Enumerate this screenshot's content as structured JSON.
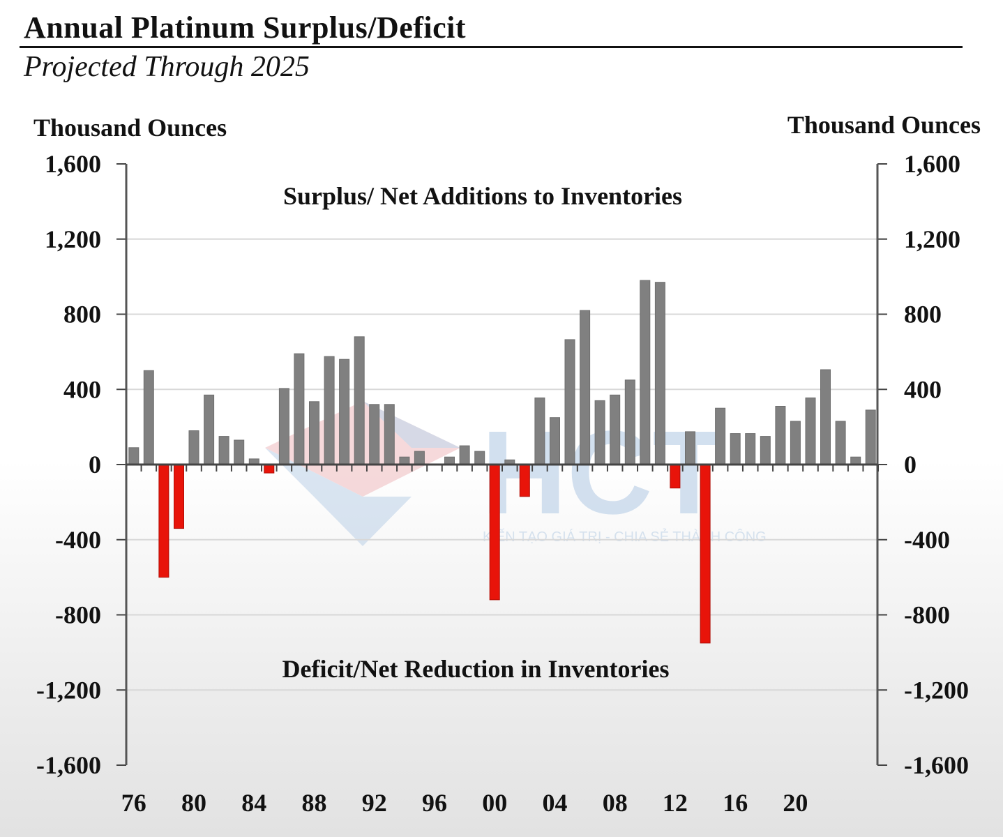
{
  "chart_data": {
    "type": "bar",
    "title": "Annual Platinum Surplus/Deficit",
    "subtitle": "Projected Through 2025",
    "ylabel_left": "Thousand Ounces",
    "ylabel_right": "Thousand Ounces",
    "ylim": [
      -1600,
      1600
    ],
    "yticks": [
      1600,
      1200,
      800,
      400,
      0,
      -400,
      -800,
      -1200,
      -1600
    ],
    "ytick_labels": [
      "1,600",
      "1,200",
      "800",
      "400",
      "0",
      "-400",
      "-800",
      "-1,200",
      "-1,600"
    ],
    "xtick_labels": [
      "76",
      "80",
      "84",
      "88",
      "92",
      "96",
      "00",
      "04",
      "08",
      "12",
      "16",
      "20"
    ],
    "xtick_years": [
      1976,
      1980,
      1984,
      1988,
      1992,
      1996,
      2000,
      2004,
      2008,
      2012,
      2016,
      2020
    ],
    "grid": true,
    "annotations": {
      "surplus": "Surplus/ Net Additions to Inventories",
      "deficit": "Deficit/Net Reduction in Inventories"
    },
    "colors": {
      "surplus": "#808080",
      "deficit": "#e8140a"
    },
    "x": [
      1976,
      1977,
      1978,
      1979,
      1980,
      1981,
      1982,
      1983,
      1984,
      1985,
      1986,
      1987,
      1988,
      1989,
      1990,
      1991,
      1992,
      1993,
      1994,
      1995,
      1996,
      1997,
      1998,
      1999,
      2000,
      2001,
      2002,
      2003,
      2004,
      2005,
      2006,
      2007,
      2008,
      2009,
      2010,
      2011,
      2012,
      2013,
      2014,
      2015,
      2016,
      2017,
      2018,
      2019,
      2020,
      2021,
      2022,
      2023,
      2024,
      2025
    ],
    "values": [
      90,
      500,
      -600,
      -340,
      180,
      370,
      150,
      130,
      30,
      -45,
      405,
      590,
      335,
      575,
      560,
      680,
      320,
      320,
      40,
      70,
      0,
      40,
      100,
      70,
      -720,
      25,
      -170,
      355,
      250,
      665,
      820,
      340,
      370,
      450,
      980,
      970,
      -125,
      175,
      -950,
      300,
      165,
      165,
      150,
      310,
      230,
      355,
      505,
      230,
      40,
      290
    ]
  },
  "watermark": {
    "brand": "HCT",
    "slogan": "KIẾN TẠO GIÁ TRỊ - CHIA SẺ THÀNH CÔNG"
  }
}
